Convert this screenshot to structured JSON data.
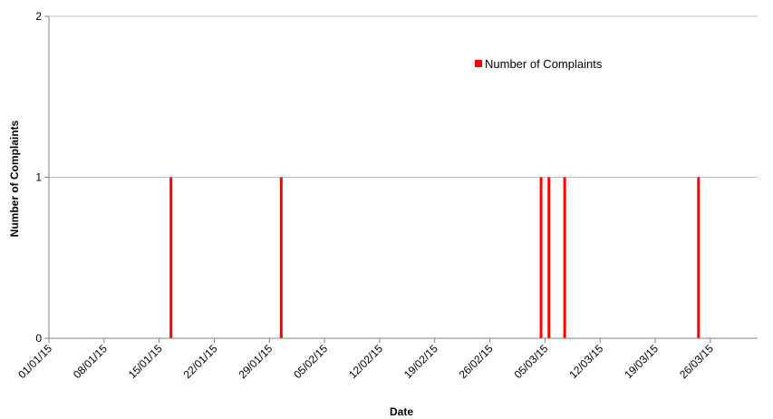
{
  "chart_data": {
    "type": "bar",
    "title": "",
    "xlabel": "Date",
    "ylabel": "Number of Complaints",
    "x_start": "2015-01-01",
    "x_end": "2015-03-31",
    "ylim": [
      0,
      2
    ],
    "y_ticks": [
      "0",
      "1",
      "2"
    ],
    "x_ticks": [
      {
        "date": "2015-01-01",
        "label": "01/01/15"
      },
      {
        "date": "2015-01-08",
        "label": "08/01/15"
      },
      {
        "date": "2015-01-15",
        "label": "15/01/15"
      },
      {
        "date": "2015-01-22",
        "label": "22/01/15"
      },
      {
        "date": "2015-01-29",
        "label": "29/01/15"
      },
      {
        "date": "2015-02-05",
        "label": "05/02/15"
      },
      {
        "date": "2015-02-12",
        "label": "12/02/15"
      },
      {
        "date": "2015-02-19",
        "label": "19/02/15"
      },
      {
        "date": "2015-02-26",
        "label": "26/02/15"
      },
      {
        "date": "2015-03-05",
        "label": "05/03/15"
      },
      {
        "date": "2015-03-12",
        "label": "12/03/15"
      },
      {
        "date": "2015-03-19",
        "label": "19/03/15"
      },
      {
        "date": "2015-03-26",
        "label": "26/03/15"
      }
    ],
    "series": [
      {
        "name": "Number of Complaints",
        "color": "#ff0000",
        "points": [
          {
            "date": "2015-01-16",
            "value": 1
          },
          {
            "date": "2015-01-30",
            "value": 1
          },
          {
            "date": "2015-03-04",
            "value": 1
          },
          {
            "date": "2015-03-05",
            "value": 1
          },
          {
            "date": "2015-03-07",
            "value": 1
          },
          {
            "date": "2015-03-24",
            "value": 1
          }
        ]
      }
    ],
    "legend_position": "top-right (inside plot)",
    "grid": {
      "horizontal": true,
      "vertical": false
    },
    "gridline_color": "#bfbfbf"
  }
}
